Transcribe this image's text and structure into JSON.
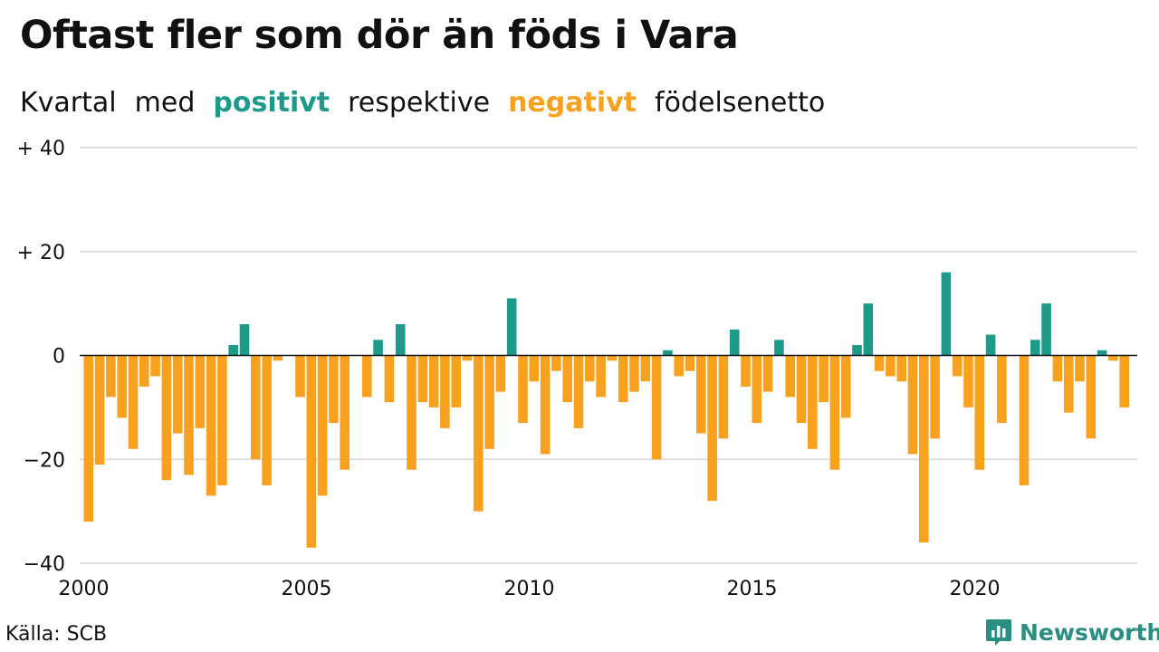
{
  "title": "Oftast fler som dör än föds i Vara",
  "subtitle": {
    "prefix": "Kvartal",
    "med": "med",
    "positive": "positivt",
    "middle": "respektive",
    "negative": "negativt",
    "suffix": "födelsenetto"
  },
  "source": "Källa: SCB",
  "brand": "Newsworthy",
  "colors": {
    "positive": "#1d9a8a",
    "negative": "#f7a11e",
    "grid": "#dddddd",
    "brand": "#2a8e82"
  },
  "chart_data": {
    "type": "bar",
    "xlabel": "",
    "ylabel": "",
    "ylim": [
      -40,
      40
    ],
    "grid": true,
    "y_ticks": [
      {
        "value": 40,
        "label": "+ 40"
      },
      {
        "value": 20,
        "label": "+ 20"
      },
      {
        "value": 0,
        "label": "0"
      },
      {
        "value": -20,
        "label": "−20"
      },
      {
        "value": -40,
        "label": "−40"
      }
    ],
    "x_ticks": [
      "2000",
      "2005",
      "2010",
      "2015",
      "2020"
    ],
    "categories": [
      "2000 K1",
      "2000 K2",
      "2000 K3",
      "2000 K4",
      "2001 K1",
      "2001 K2",
      "2001 K3",
      "2001 K4",
      "2002 K1",
      "2002 K2",
      "2002 K3",
      "2002 K4",
      "2003 K1",
      "2003 K2",
      "2003 K3",
      "2003 K4",
      "2004 K1",
      "2004 K2",
      "2004 K3",
      "2004 K4",
      "2005 K1",
      "2005 K2",
      "2005 K3",
      "2005 K4",
      "2006 K1",
      "2006 K2",
      "2006 K3",
      "2006 K4",
      "2007 K1",
      "2007 K2",
      "2007 K3",
      "2007 K4",
      "2008 K1",
      "2008 K2",
      "2008 K3",
      "2008 K4",
      "2009 K1",
      "2009 K2",
      "2009 K3",
      "2009 K4",
      "2010 K1",
      "2010 K2",
      "2010 K3",
      "2010 K4",
      "2011 K1",
      "2011 K2",
      "2011 K3",
      "2011 K4",
      "2012 K1",
      "2012 K2",
      "2012 K3",
      "2012 K4",
      "2013 K1",
      "2013 K2",
      "2013 K3",
      "2013 K4",
      "2014 K1",
      "2014 K2",
      "2014 K3",
      "2014 K4",
      "2015 K1",
      "2015 K2",
      "2015 K3",
      "2015 K4",
      "2016 K1",
      "2016 K2",
      "2016 K3",
      "2016 K4",
      "2017 K1",
      "2017 K2",
      "2017 K3",
      "2017 K4",
      "2018 K1",
      "2018 K2",
      "2018 K3",
      "2018 K4",
      "2019 K1",
      "2019 K2",
      "2019 K3",
      "2019 K4",
      "2020 K1",
      "2020 K2",
      "2020 K3",
      "2020 K4",
      "2021 K1",
      "2021 K2",
      "2021 K3",
      "2021 K4",
      "2022 K1",
      "2022 K2",
      "2022 K3",
      "2022 K4",
      "2023 K1",
      "2023 K2",
      "2023 K3"
    ],
    "values": [
      -32,
      -21,
      -8,
      -12,
      -18,
      -6,
      -4,
      -24,
      -15,
      -23,
      -14,
      -27,
      -25,
      2,
      6,
      -20,
      -25,
      -1,
      0,
      -8,
      -37,
      -27,
      -13,
      -22,
      0,
      -8,
      3,
      -9,
      6,
      -22,
      -9,
      -10,
      -14,
      -10,
      -1,
      -30,
      -18,
      -7,
      11,
      -13,
      -5,
      -19,
      -3,
      -9,
      -14,
      -5,
      -8,
      -1,
      -9,
      -7,
      -5,
      -20,
      1,
      -4,
      -3,
      -15,
      -28,
      -16,
      5,
      -6,
      -13,
      -7,
      3,
      -8,
      -13,
      -18,
      -9,
      -22,
      -12,
      2,
      10,
      -3,
      -4,
      -5,
      -19,
      -36,
      -16,
      16,
      -4,
      -10,
      -22,
      4,
      -13,
      0,
      -25,
      3,
      10,
      -5,
      -11,
      -5,
      -16,
      1,
      -1,
      -10,
      0
    ]
  }
}
